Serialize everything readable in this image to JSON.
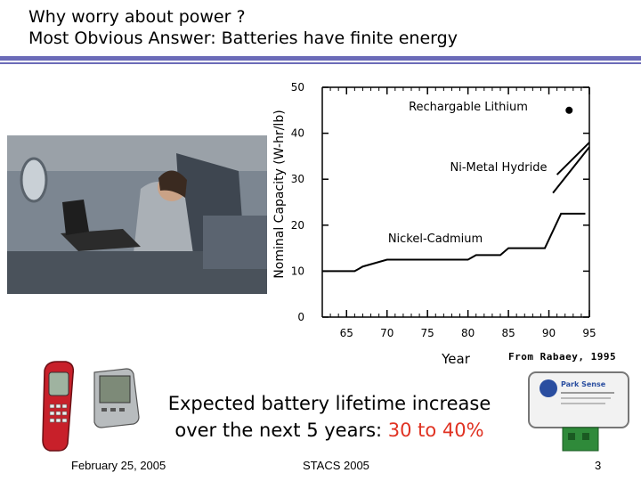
{
  "slide": {
    "title_line1": "Why worry about power ?",
    "title_line2": "Most Obvious Answer: Batteries have finite energy",
    "expectation_prefix": "Expected battery lifetime increase",
    "expectation_line2_prefix": "over the next 5 years: ",
    "expectation_highlight": "30 to 40%",
    "citation": "From Rabaey, 1995",
    "footer_date": "February 25, 2005",
    "footer_conference": "STACS 2005",
    "footer_page": "3",
    "sensor_label_top": "Park Sense",
    "colors": {
      "accent_rule": "#6b6bb8",
      "highlight": "#e03222"
    }
  },
  "chart_data": {
    "type": "line",
    "ylabel": "Nominal Capacity (W-hr/lb)",
    "xlabel": "Year",
    "ylim": [
      0,
      50
    ],
    "xlim": [
      62,
      95
    ],
    "xticks": [
      "65",
      "70",
      "75",
      "80",
      "85",
      "90",
      "95"
    ],
    "yticks": [
      "0",
      "10",
      "20",
      "30",
      "40",
      "50"
    ],
    "series": [
      {
        "name": "Nickel-Cadmium",
        "x": [
          62,
          66,
          66.5,
          67,
          70,
          75,
          77,
          80,
          81,
          84,
          85,
          89.5,
          91.5,
          94.5
        ],
        "y": [
          10,
          10,
          10.5,
          11,
          12.5,
          12.5,
          12.5,
          12.5,
          13.5,
          13.5,
          15,
          15,
          22.5,
          22.5
        ]
      },
      {
        "name": "Ni-Metal Hydride",
        "x": [
          90.5,
          95
        ],
        "y": [
          27,
          37
        ]
      },
      {
        "name": "Ni-Metal Hydride (upper)",
        "x": [
          91,
          95
        ],
        "y": [
          31,
          38
        ]
      },
      {
        "name": "Rechargable Lithium",
        "x": [
          92.5
        ],
        "y": [
          45
        ]
      }
    ],
    "labels": {
      "nicd": "Nickel-Cadmium",
      "nimh": "Ni-Metal Hydride",
      "lithium": "Rechargable Lithium"
    }
  }
}
